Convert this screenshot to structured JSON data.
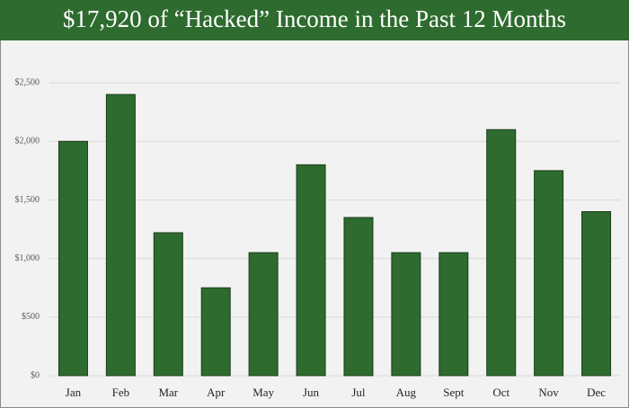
{
  "chart_data": {
    "type": "bar",
    "title": "$17,920 of “Hacked” Income in the Past 12 Months",
    "categories": [
      "Jan",
      "Feb",
      "Mar",
      "Apr",
      "May",
      "Jun",
      "Jul",
      "Aug",
      "Sept",
      "Oct",
      "Nov",
      "Dec"
    ],
    "values": [
      2000,
      2400,
      1220,
      750,
      1050,
      1800,
      1350,
      1050,
      1050,
      2100,
      1750,
      1400
    ],
    "color": "#2e6b2e",
    "ylim": [
      0,
      2800
    ],
    "yticks": [
      {
        "value": 0,
        "label": "$0"
      },
      {
        "value": 500,
        "label": "$500"
      },
      {
        "value": 1000,
        "label": "$1,000"
      },
      {
        "value": 1500,
        "label": "$1,500"
      },
      {
        "value": 2000,
        "label": "$2,000"
      },
      {
        "value": 2500,
        "label": "$2,500"
      }
    ],
    "grid": true
  }
}
